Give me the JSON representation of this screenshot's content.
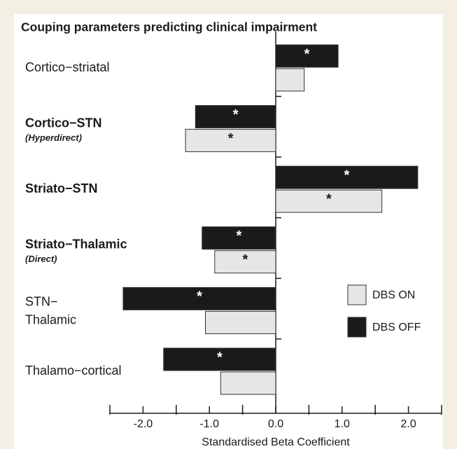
{
  "chart_data": {
    "type": "hbar",
    "title": "Couping parameters predicting clinical impairment",
    "xlabel": "Standardised Beta Coefficient",
    "categories": [
      "Cortico−striatal",
      "Cortico−STN",
      "Striato−STN",
      "Striato−Thalamic",
      "STN−Thalamic",
      "Thalamo−cortical"
    ],
    "category_sublabels": [
      null,
      "(Hyperdirect)",
      null,
      "(Direct)",
      null,
      null
    ],
    "category_bold": [
      false,
      true,
      true,
      true,
      false,
      false
    ],
    "category_wrap": [
      false,
      false,
      false,
      false,
      true,
      false
    ],
    "series": [
      {
        "name": "DBS ON",
        "color": "#e6e6e6",
        "values": [
          0.43,
          -1.36,
          1.6,
          -0.92,
          -1.06,
          -0.83
        ],
        "labels": [
          null,
          "*",
          "*",
          "*",
          null,
          null
        ]
      },
      {
        "name": "DBS OFF",
        "color": "#1a1a1a",
        "values": [
          0.94,
          -1.21,
          2.14,
          -1.11,
          -2.3,
          -1.69
        ],
        "labels": [
          "*",
          "*",
          "*",
          "*",
          "*",
          "*"
        ]
      }
    ],
    "xlim": [
      -2.5,
      2.5
    ],
    "xticks": [
      {
        "value": -2,
        "label": "-2.0"
      },
      {
        "value": -1,
        "label": "-1.0"
      },
      {
        "value": 0,
        "label": "0.0"
      },
      {
        "value": 1,
        "label": "1.0"
      },
      {
        "value": 2,
        "label": "2.0"
      }
    ],
    "minor_xticks": [
      -2.5,
      -1.5,
      -0.5,
      0.5,
      1.5,
      2.5
    ],
    "legend": "right"
  }
}
